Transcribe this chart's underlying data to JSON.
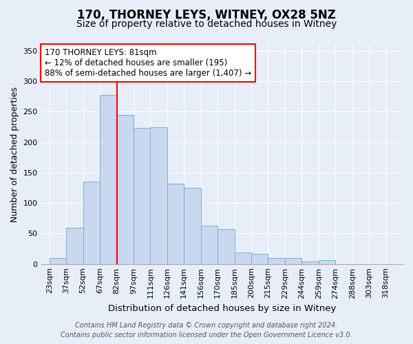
{
  "title": "170, THORNEY LEYS, WITNEY, OX28 5NZ",
  "subtitle": "Size of property relative to detached houses in Witney",
  "xlabel": "Distribution of detached houses by size in Witney",
  "ylabel": "Number of detached properties",
  "categories": [
    "23sqm",
    "37sqm",
    "52sqm",
    "67sqm",
    "82sqm",
    "97sqm",
    "111sqm",
    "126sqm",
    "141sqm",
    "156sqm",
    "170sqm",
    "185sqm",
    "200sqm",
    "215sqm",
    "229sqm",
    "244sqm",
    "259sqm",
    "274sqm",
    "288sqm",
    "303sqm",
    "318sqm"
  ],
  "values": [
    10,
    60,
    135,
    278,
    245,
    223,
    225,
    132,
    125,
    63,
    57,
    19,
    17,
    10,
    10,
    4,
    6,
    0,
    0,
    0,
    0
  ],
  "bar_color": "#c8d8ee",
  "bar_edge_color": "#7bafd4",
  "redline_after_index": 3,
  "annotation_line1": "170 THORNEY LEYS: 81sqm",
  "annotation_line2": "← 12% of detached houses are smaller (195)",
  "annotation_line3": "88% of semi-detached houses are larger (1,407) →",
  "annotation_box_color": "white",
  "annotation_box_edgecolor": "red",
  "ylim": [
    0,
    360
  ],
  "yticks": [
    0,
    50,
    100,
    150,
    200,
    250,
    300,
    350
  ],
  "footer_line1": "Contains HM Land Registry data © Crown copyright and database right 2024.",
  "footer_line2": "Contains public sector information licensed under the Open Government Licence v3.0.",
  "title_fontsize": 12,
  "subtitle_fontsize": 10,
  "xlabel_fontsize": 9.5,
  "ylabel_fontsize": 9,
  "tick_fontsize": 8,
  "annotation_fontsize": 8.5,
  "footer_fontsize": 7,
  "background_color": "#e8eef8",
  "grid_color": "#ffffff"
}
